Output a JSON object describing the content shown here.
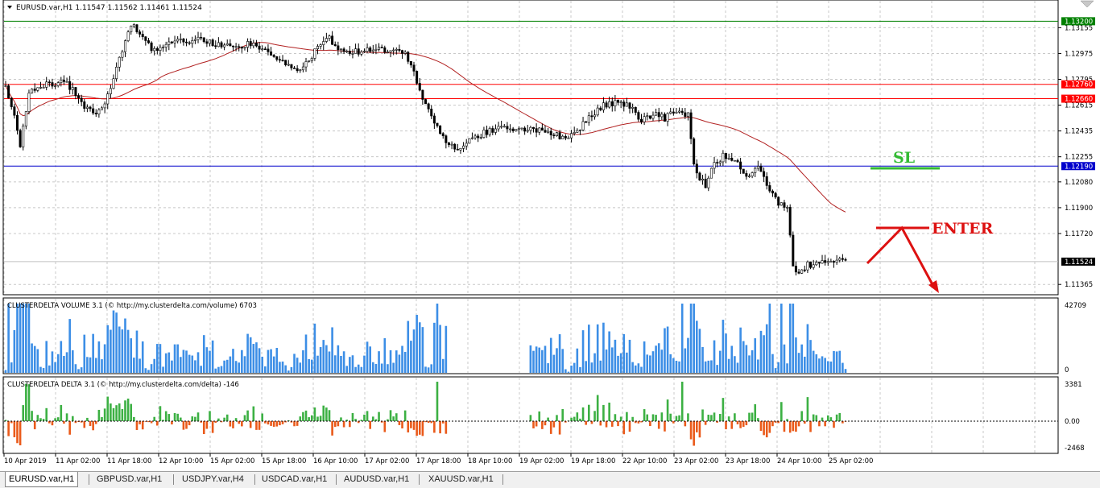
{
  "window": {
    "symbol_line": "EURUSD.var,H1  1.11547 1.11562 1.11461 1.11524"
  },
  "price_levels": {
    "resistance_top": {
      "label": "1.13200",
      "value": 1.132,
      "color": "#008000"
    },
    "red_upper": {
      "label": "1.12760",
      "value": 1.1276,
      "color": "#ff0000"
    },
    "red_lower": {
      "label": "1.12660",
      "value": 1.1266,
      "color": "#ff0000"
    },
    "blue_level": {
      "label": "1.12190",
      "value": 1.1219,
      "color": "#0000ff"
    },
    "current": {
      "label": "1.11524",
      "value": 1.11524,
      "color": "#000000"
    }
  },
  "annotations": {
    "sl_label": "SL",
    "enter_label": "ENTER",
    "sl_color": "#33bb33",
    "enter_color": "#dd1111"
  },
  "volume_panel": {
    "title": "CLUSTERDELTA VOLUME 3.1 (© http://my.clusterdelta.com/volume) 6703",
    "axis_max_label": "42709",
    "axis_min_label": "0",
    "bar_color": "#3c8ee6"
  },
  "delta_panel": {
    "title": "CLUSTERDELTA DELTA 3.1 (© http://my.clusterdelta.com/delta) -146",
    "axis_top_label": "3381",
    "axis_zero_label": "0.00",
    "axis_bottom_label": "-2468",
    "pos_color": "#3cb043",
    "neg_color": "#ea5a1a"
  },
  "tabs": [
    {
      "label": "EURUSD.var,H1",
      "active": true
    },
    {
      "label": "GBPUSD.var,H1",
      "active": false
    },
    {
      "label": "USDJPY.var,H4",
      "active": false
    },
    {
      "label": "USDCAD.var,H1",
      "active": false
    },
    {
      "label": "AUDUSD.var,H1",
      "active": false
    },
    {
      "label": "XAUUSD.var,H1",
      "active": false
    }
  ],
  "chart_data": {
    "type": "candlestick",
    "symbol": "EURUSD.var",
    "timeframe": "H1",
    "ylim": [
      1.1131,
      1.1332
    ],
    "y_ticks": [
      "1.13155",
      "1.12975",
      "1.12795",
      "1.12615",
      "1.12435",
      "1.12255",
      "1.12080",
      "1.11900",
      "1.11720",
      "1.11365"
    ],
    "y_tick_values": [
      1.13155,
      1.12975,
      1.12795,
      1.12615,
      1.12435,
      1.12255,
      1.1208,
      1.119,
      1.1172,
      1.11365
    ],
    "x_ticks": [
      "10 Apr 2019",
      "11 Apr 02:00",
      "11 Apr 18:00",
      "12 Apr 10:00",
      "15 Apr 02:00",
      "15 Apr 18:00",
      "16 Apr 10:00",
      "17 Apr 02:00",
      "17 Apr 18:00",
      "18 Apr 10:00",
      "19 Apr 02:00",
      "19 Apr 18:00",
      "22 Apr 10:00",
      "23 Apr 02:00",
      "23 Apr 18:00",
      "24 Apr 10:00",
      "25 Apr 02:00"
    ],
    "close_keyframes": [
      [
        0,
        1.1275
      ],
      [
        3,
        1.1253
      ],
      [
        5,
        1.1232
      ],
      [
        8,
        1.1272
      ],
      [
        14,
        1.1276
      ],
      [
        20,
        1.1278
      ],
      [
        25,
        1.1268
      ],
      [
        28,
        1.1258
      ],
      [
        31,
        1.1256
      ],
      [
        34,
        1.1264
      ],
      [
        37,
        1.128
      ],
      [
        40,
        1.13
      ],
      [
        43,
        1.1318
      ],
      [
        47,
        1.131
      ],
      [
        50,
        1.13
      ],
      [
        55,
        1.1304
      ],
      [
        60,
        1.1306
      ],
      [
        65,
        1.1307
      ],
      [
        70,
        1.1306
      ],
      [
        75,
        1.1302
      ],
      [
        80,
        1.1303
      ],
      [
        85,
        1.1305
      ],
      [
        90,
        1.1299
      ],
      [
        95,
        1.1292
      ],
      [
        100,
        1.1286
      ],
      [
        105,
        1.1296
      ],
      [
        110,
        1.131
      ],
      [
        114,
        1.13
      ],
      [
        120,
        1.1299
      ],
      [
        130,
        1.13
      ],
      [
        134,
        1.13
      ],
      [
        137,
        1.1298
      ],
      [
        140,
        1.1285
      ],
      [
        142,
        1.127
      ],
      [
        145,
        1.1258
      ],
      [
        148,
        1.1247
      ],
      [
        152,
        1.1233
      ],
      [
        155,
        1.123
      ],
      [
        158,
        1.1236
      ],
      [
        162,
        1.124
      ],
      [
        165,
        1.1243
      ],
      [
        170,
        1.1246
      ],
      [
        175,
        1.1245
      ],
      [
        180,
        1.1244
      ],
      [
        185,
        1.1243
      ],
      [
        190,
        1.124
      ],
      [
        192,
        1.1238
      ],
      [
        195,
        1.1242
      ],
      [
        200,
        1.1252
      ],
      [
        205,
        1.1262
      ],
      [
        210,
        1.1263
      ],
      [
        215,
        1.1261
      ],
      [
        218,
        1.125
      ],
      [
        222,
        1.1256
      ],
      [
        226,
        1.1252
      ],
      [
        230,
        1.1258
      ],
      [
        234,
        1.1255
      ],
      [
        236,
        1.122
      ],
      [
        238,
        1.121
      ],
      [
        240,
        1.1206
      ],
      [
        243,
        1.122
      ],
      [
        246,
        1.1226
      ],
      [
        250,
        1.1222
      ],
      [
        255,
        1.1212
      ],
      [
        258,
        1.1218
      ],
      [
        260,
        1.121
      ],
      [
        263,
        1.12
      ],
      [
        265,
        1.1193
      ],
      [
        268,
        1.119
      ],
      [
        270,
        1.115
      ],
      [
        272,
        1.1143
      ],
      [
        275,
        1.115
      ],
      [
        280,
        1.1152
      ],
      [
        285,
        1.1153
      ],
      [
        288,
        1.1152
      ]
    ],
    "volume_max": 42709,
    "delta_range": [
      -2468,
      3381
    ],
    "series": [
      {
        "name": "EURUSD.var,H1"
      }
    ]
  }
}
